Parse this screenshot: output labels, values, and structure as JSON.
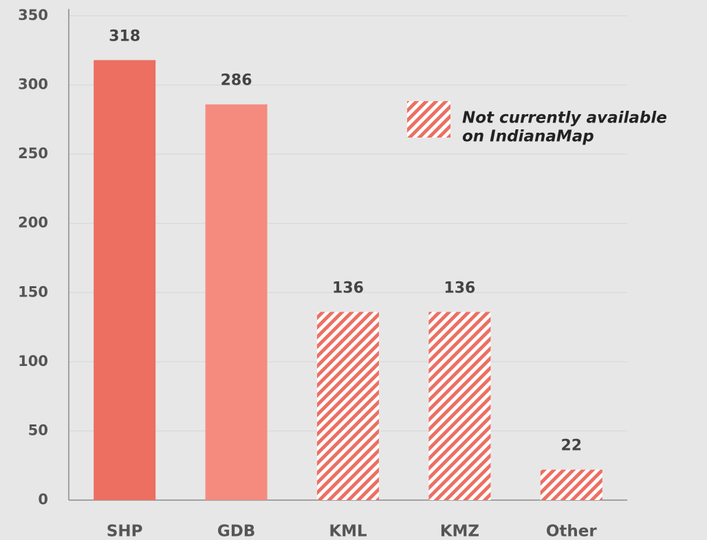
{
  "chart_data": {
    "type": "bar",
    "categories": [
      "SHP",
      "GDB",
      "KML",
      "KMZ",
      "Other"
    ],
    "values": [
      318,
      286,
      136,
      136,
      22
    ],
    "colors": [
      "#ec6f62",
      "#f58b7f",
      "#ec6f62",
      "#ec6f62",
      "#ec6f62"
    ],
    "patterned": [
      false,
      false,
      true,
      true,
      true
    ],
    "ylim": [
      0,
      350
    ],
    "yticks": [
      0,
      50,
      100,
      150,
      200,
      250,
      300,
      350
    ],
    "grid": true,
    "legend_text": [
      "Not currently available",
      "on IndianaMap"
    ]
  }
}
